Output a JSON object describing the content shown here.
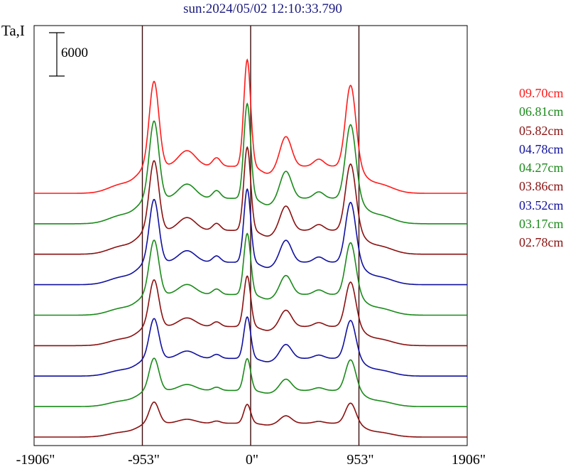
{
  "chart_data": {
    "type": "line",
    "title": "sun:2024/05/02 12:10:33.790",
    "ylabel": "Ta,I",
    "scale_bar_label": "6000",
    "x_ticks": [
      "-1906\"",
      "-953\"",
      "0\"",
      "953\"",
      "1906\""
    ],
    "x_tick_values": [
      -1906,
      -953,
      0,
      953,
      1906
    ],
    "xlim": [
      -1906,
      1906
    ],
    "reference_lines_x": [
      -953,
      0,
      953
    ],
    "series": [
      {
        "name": "09.70cm",
        "color": "#ff1a1a",
        "amp": 1.0
      },
      {
        "name": "06.81cm",
        "color": "#1a8a1a",
        "amp": 0.91
      },
      {
        "name": "05.82cm",
        "color": "#8a1010",
        "amp": 0.82
      },
      {
        "name": "04.78cm",
        "color": "#1010a0",
        "amp": 0.74
      },
      {
        "name": "04.27cm",
        "color": "#1a8a1a",
        "amp": 0.64
      },
      {
        "name": "03.86cm",
        "color": "#8a1010",
        "amp": 0.55
      },
      {
        "name": "03.52cm",
        "color": "#1010a0",
        "amp": 0.47
      },
      {
        "name": "03.17cm",
        "color": "#1a8a1a",
        "amp": 0.38
      },
      {
        "name": "02.78cm",
        "color": "#8a1010",
        "amp": 0.25
      }
    ]
  }
}
